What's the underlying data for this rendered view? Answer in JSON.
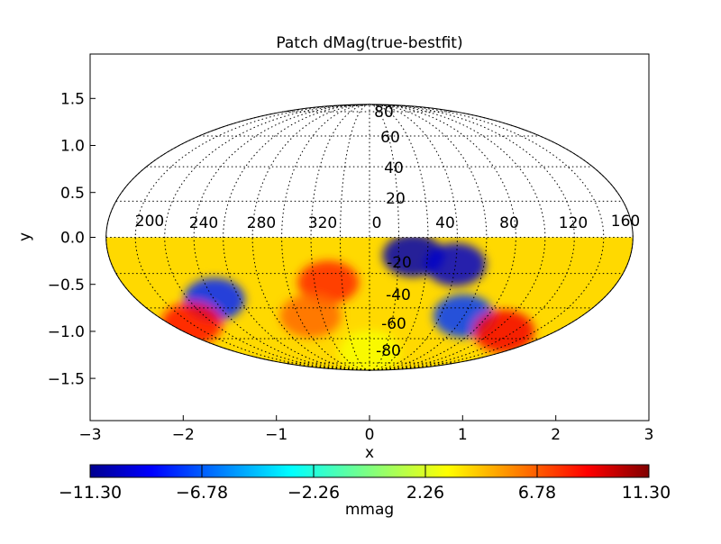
{
  "chart_data": {
    "type": "heatmap",
    "projection": "mollweide",
    "title": "Patch dMag(true-bestfit)",
    "xlabel": "x",
    "ylabel": "y",
    "xlim": [
      -3,
      3
    ],
    "ylim": [
      -1.95,
      1.95
    ],
    "x_ticks": [
      -3,
      -2,
      -1,
      0,
      1,
      2,
      3
    ],
    "x_tick_labels": [
      "−3",
      "−2",
      "−1",
      "0",
      "1",
      "2",
      "3"
    ],
    "y_ticks": [
      -1.5,
      -1.0,
      -0.5,
      0.0,
      0.5,
      1.0,
      1.5
    ],
    "y_tick_labels": [
      "−1.5",
      "−1.0",
      "−0.5",
      "0.0",
      "0.5",
      "1.0",
      "1.5"
    ],
    "longitude_labels": [
      "200",
      "240",
      "280",
      "320",
      "0",
      "40",
      "80",
      "120",
      "160"
    ],
    "latitude_labels": [
      "80",
      "60",
      "40",
      "20",
      "-20",
      "-40",
      "-60",
      "-80"
    ],
    "grid": true,
    "data_coverage": "southern hemisphere only (latitude < 0)",
    "colorbar": {
      "label": "mmag",
      "min": -11.3,
      "max": 11.3,
      "colormap": "jet",
      "ticks": [
        -11.3,
        -6.78,
        -2.26,
        2.26,
        6.78,
        11.3
      ],
      "tick_labels": [
        "−11.30",
        "−6.78",
        "−2.26",
        "2.26",
        "6.78",
        "11.30"
      ]
    },
    "features": [
      {
        "lon": 30,
        "lat": -10,
        "value": -10.5
      },
      {
        "lon": 60,
        "lat": -15,
        "value": -10.0
      },
      {
        "lon": 80,
        "lat": -45,
        "value": -7.5
      },
      {
        "lon": 240,
        "lat": -35,
        "value": -8.0
      },
      {
        "lon": 330,
        "lat": -25,
        "value": 8.0
      },
      {
        "lon": 310,
        "lat": -45,
        "value": 6.5
      },
      {
        "lon": 200,
        "lat": -50,
        "value": 8.5
      },
      {
        "lon": 130,
        "lat": -55,
        "value": 9.0
      },
      {
        "lon": 0,
        "lat": -70,
        "value": 3.0
      }
    ]
  }
}
